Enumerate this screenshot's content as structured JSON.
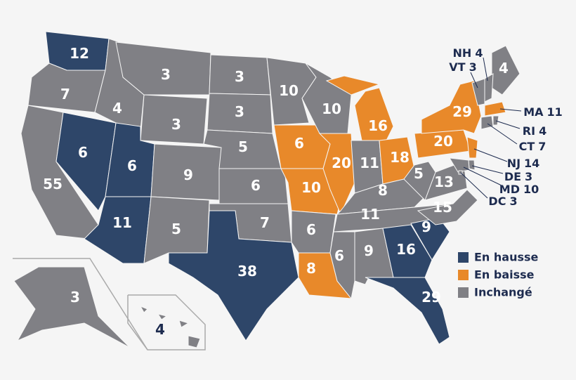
{
  "legend": [
    {
      "label": "En hausse",
      "color": "#2e4669"
    },
    {
      "label": "En baisse",
      "color": "#e8892a"
    },
    {
      "label": "Inchangé",
      "color": "#808085"
    }
  ],
  "states": [
    {
      "votes": 12,
      "group": 0
    },
    {
      "votes": 7,
      "group": 2
    },
    {
      "votes": 55,
      "group": 2
    },
    {
      "votes": 6,
      "group": 0
    },
    {
      "votes": 4,
      "group": 2
    },
    {
      "votes": 3,
      "group": 2
    },
    {
      "votes": 3,
      "group": 2
    },
    {
      "votes": 6,
      "group": 0
    },
    {
      "votes": 11,
      "group": 0
    },
    {
      "votes": 9,
      "group": 2
    },
    {
      "votes": 5,
      "group": 2
    },
    {
      "votes": 3,
      "group": 2
    },
    {
      "votes": 3,
      "group": 2
    },
    {
      "votes": 5,
      "group": 2
    },
    {
      "votes": 6,
      "group": 2
    },
    {
      "votes": 7,
      "group": 2
    },
    {
      "votes": 38,
      "group": 0
    },
    {
      "votes": 10,
      "group": 2
    },
    {
      "votes": 6,
      "group": 1
    },
    {
      "votes": 10,
      "group": 1
    },
    {
      "votes": 6,
      "group": 2
    },
    {
      "votes": 8,
      "group": 1
    },
    {
      "votes": 10,
      "group": 2
    },
    {
      "votes": 20,
      "group": 1
    },
    {
      "votes": 16,
      "group": 1
    },
    {
      "votes": 11,
      "group": 2
    },
    {
      "votes": 18,
      "group": 1
    },
    {
      "votes": 8,
      "group": 2
    },
    {
      "votes": 11,
      "group": 2
    },
    {
      "votes": 6,
      "group": 2
    },
    {
      "votes": 9,
      "group": 2
    },
    {
      "votes": 16,
      "group": 0
    },
    {
      "votes": 29,
      "group": 0
    },
    {
      "votes": 9,
      "group": 0
    },
    {
      "votes": 15,
      "group": 2
    },
    {
      "votes": 13,
      "group": 2
    },
    {
      "votes": 5,
      "group": 2
    },
    {
      "votes": 20,
      "group": 1
    },
    {
      "votes": 29,
      "group": 1
    },
    {
      "votes": 4,
      "group": 2
    },
    {
      "votes": 3,
      "group": 2
    },
    {
      "votes": 4,
      "group": 2
    },
    {
      "name": "NH",
      "votes": 4,
      "group": 2
    },
    {
      "name": "VT",
      "votes": 3,
      "group": 2
    },
    {
      "name": "MA",
      "votes": 11,
      "group": 1
    },
    {
      "name": "RI",
      "votes": 4,
      "group": 2
    },
    {
      "name": "CT",
      "votes": 7,
      "group": 2
    },
    {
      "name": "NJ",
      "votes": 14,
      "group": 1
    },
    {
      "name": "DE",
      "votes": 3,
      "group": 2
    },
    {
      "name": "MD",
      "votes": 10,
      "group": 2
    },
    {
      "name": "DC",
      "votes": 3,
      "group": 2
    }
  ]
}
